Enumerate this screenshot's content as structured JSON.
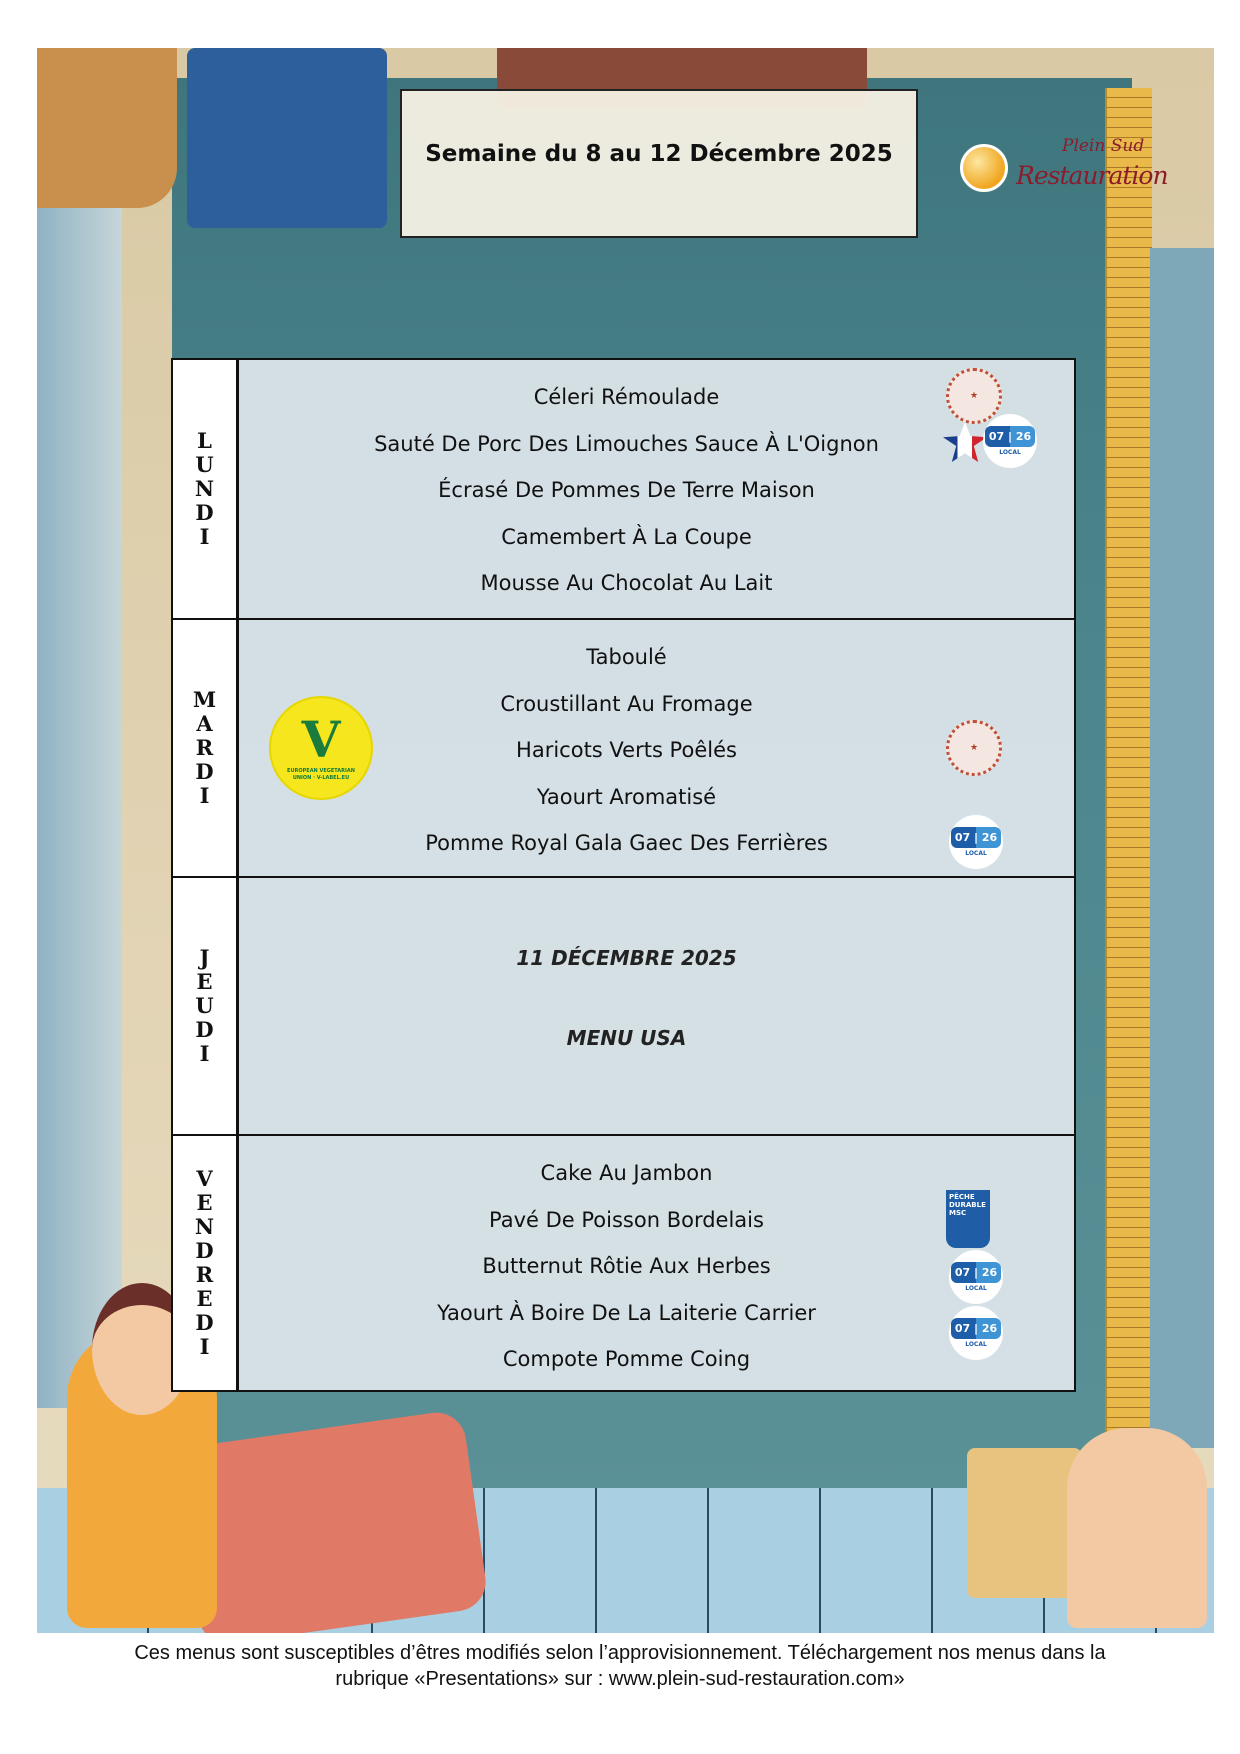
{
  "header": {
    "title": "Semaine du 8 au 12 Décembre 2025",
    "logo": {
      "line1": "Plein Sud",
      "line2": "Restauration"
    }
  },
  "days": [
    {
      "label": [
        "L",
        "U",
        "N",
        "D",
        "I"
      ],
      "dishes": [
        "Céleri Rémoulade",
        "Sauté De Porc Des Limouches Sauce À L'Oignon",
        "Écrasé De Pommes De Terre Maison",
        "Camembert À La Coupe",
        "Mousse Au Chocolat Au Lait"
      ]
    },
    {
      "label": [
        "M",
        "A",
        "R",
        "D",
        "I"
      ],
      "dishes": [
        "Taboulé",
        "Croustillant Au Fromage",
        "Haricots Verts Poêlés",
        "Yaourt Aromatisé",
        "Pomme Royal Gala Gaec Des Ferrières"
      ]
    },
    {
      "label": [
        "J",
        "E",
        "U",
        "D",
        "I"
      ],
      "special": [
        "11 DÉCEMBRE 2025",
        "MENU USA"
      ]
    },
    {
      "label": [
        "V",
        "E",
        "N",
        "D",
        "R",
        "E",
        "D",
        "I"
      ],
      "dishes": [
        "Cake Au Jambon",
        "Pavé De Poisson Bordelais",
        "Butternut Rôtie Aux Herbes",
        "Yaourt À Boire De La Laiterie Carrier",
        "Compote Pomme Coing"
      ]
    }
  ],
  "badges": {
    "local": {
      "numbers": "07 | 26",
      "text": "LOCAL"
    },
    "veg": {
      "text": "EUROPEAN VEGETARIAN UNION · V-LABEL.EU",
      "mark": "V"
    },
    "msc": {
      "text": "PÊCHE DURABLE MSC"
    },
    "rosette": "label-rouge-icon",
    "flag": "france-origin-icon"
  },
  "colors": {
    "wall": "#4c858c",
    "ruler": "#e9b94a",
    "panel": "#dfe6ec",
    "local_blue": "#1e5ea8",
    "logo_red": "#8a1c2b"
  },
  "footer": {
    "line1": "Ces menus sont susceptibles d’êtres modifiés selon l’approvisionnement. Téléchargement nos menus dans la",
    "line2": "rubrique «Presentations» sur : www.plein-sud-restauration.com»"
  }
}
